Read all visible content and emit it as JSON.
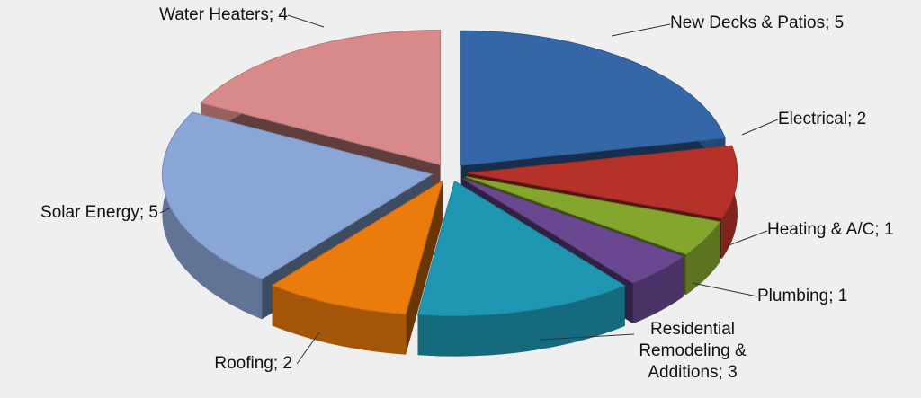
{
  "chart_data": {
    "type": "pie3d",
    "categories": [
      "New Decks & Patios",
      "Electrical",
      "Heating & A/C",
      "Plumbing",
      "Residential Remodeling & Additions",
      "Roofing",
      "Solar Energy",
      "Water Heaters"
    ],
    "values": [
      5,
      2,
      1,
      1,
      3,
      2,
      5,
      4
    ],
    "value_labels": [
      "New Decks & Patios; 5",
      "Electrical; 2",
      "Heating & A/C; 1",
      "Plumbing; 1",
      "Residential Remodeling & Additions; 3",
      "Roofing; 2",
      "Solar Energy; 5",
      "Water Heaters; 4"
    ],
    "colors": [
      "#3567a8",
      "#b5322a",
      "#84a62c",
      "#6a4891",
      "#1f97b3",
      "#ea7b0c",
      "#8aa6d6",
      "#d8898a"
    ]
  }
}
